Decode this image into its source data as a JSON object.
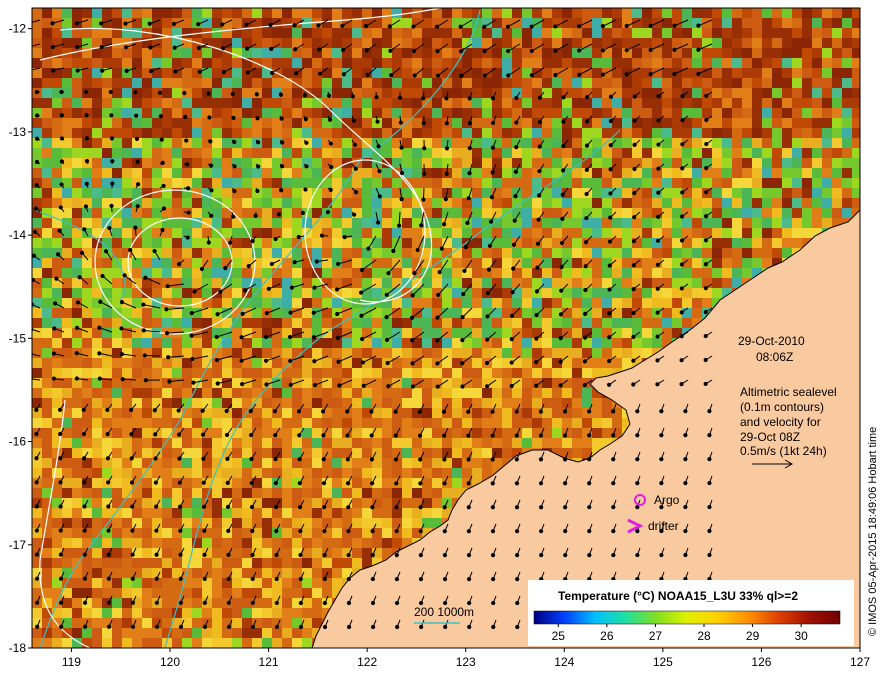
{
  "map": {
    "lon_range": [
      118.6,
      127
    ],
    "lat_range": [
      -18,
      -11.8
    ],
    "lon_ticks": [
      "119",
      "120",
      "121",
      "122",
      "123",
      "124",
      "125",
      "126",
      "127"
    ],
    "lat_ticks": [
      "-12",
      "-13",
      "-14",
      "-15",
      "-16",
      "-17",
      "-18"
    ]
  },
  "annotation": {
    "date": "29-Oct-2010",
    "time": "08:06Z",
    "desc_line1": "Altimetric sealevel",
    "desc_line2": "(0.1m contours)",
    "desc_line3": "and velocity for",
    "desc_line4": "29-Oct 08Z",
    "scale_label": "0.5m/s (1kt 24h)"
  },
  "legend": {
    "argo_label": "Argo",
    "drifter_label": "drifter",
    "argo_color": "#e020e0",
    "drifter_color": "#e020e0"
  },
  "bathymetry": {
    "label": "200  1000m",
    "color": "#40c0c0"
  },
  "colorbar": {
    "title": "Temperature (°C) NOAA15_L3U 33% ql>=2",
    "ticks": [
      "25",
      "26",
      "27",
      "28",
      "29",
      "30"
    ],
    "range": [
      24.5,
      30.8
    ],
    "colors": [
      "#000080",
      "#0040ff",
      "#00c0ff",
      "#20e0a0",
      "#80e020",
      "#e0f000",
      "#ffd000",
      "#ff9000",
      "#e04000",
      "#a01000",
      "#700000"
    ]
  },
  "credit": "© IMOS 05-Apr-2015 18:49:06 Hobart time",
  "colors": {
    "land": "#f9c9a0",
    "coast": "#000000",
    "contour": "#ffffff"
  }
}
